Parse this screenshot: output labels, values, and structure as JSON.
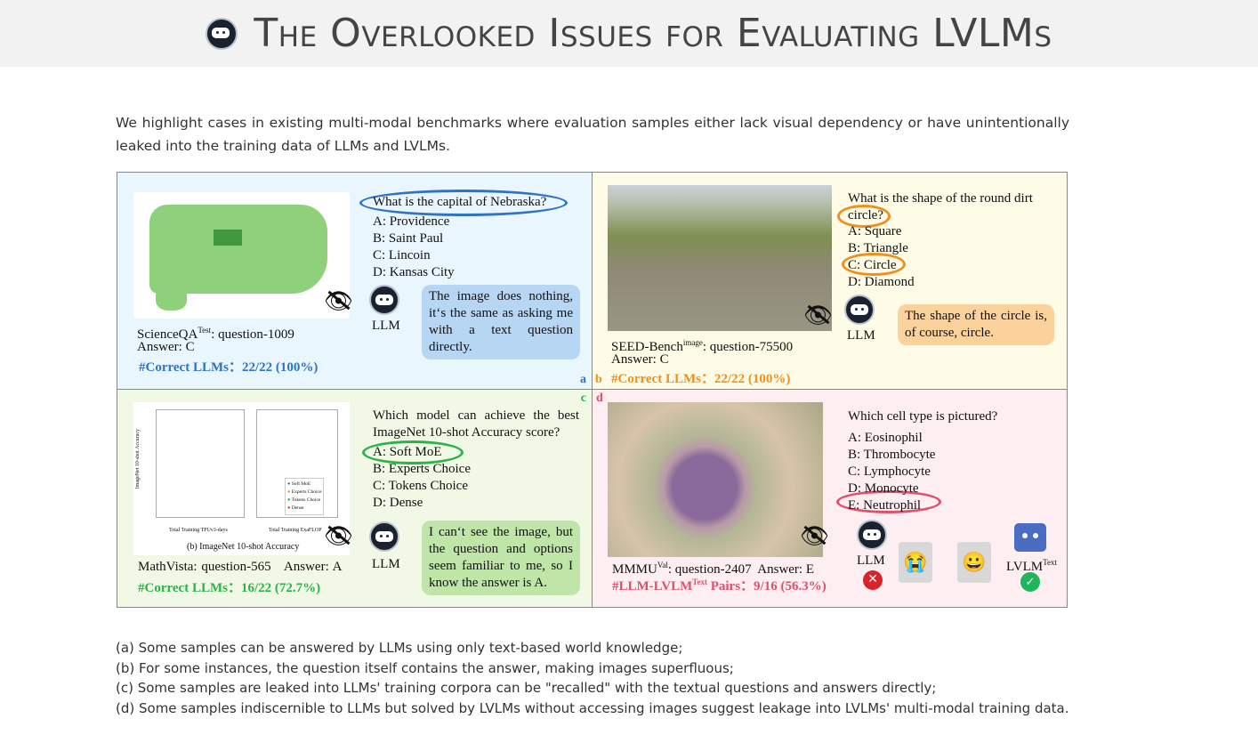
{
  "header": {
    "title": "The Overlooked Issues for Evaluating LVLMs",
    "icon": "robot-icon"
  },
  "intro": "We highlight cases in existing multi-modal benchmarks where evaluation samples either lack visual dependency or have unintentionally leaked into the training data of LLMs and LVLMs.",
  "panels": {
    "a": {
      "tag": "a",
      "question": "What is the capital of Nebraska?",
      "options": [
        "A: Providence",
        "B: Saint Paul",
        "C: Lincoin",
        "D: Kansas City"
      ],
      "agent": "LLM",
      "bubble": "The image does nothing, it‘s the same as asking me with a text question directly.",
      "source": "ScienceQA",
      "source_sup": "Test",
      "source_rest": ": question-1009",
      "answer": "Answer: C",
      "stat": "#Correct LLMs：22/22 (100%)",
      "color": "#2f73c5"
    },
    "b": {
      "tag": "b",
      "question1": "What is the shape of the round dirt",
      "question2": "circle?",
      "options": [
        "A: Square",
        "B: Triangle",
        "C: Circle",
        "D: Diamond"
      ],
      "agent": "LLM",
      "bubble": "The shape of the circle is, of course, circle.",
      "source": "SEED-Bench",
      "source_sup": "image",
      "source_rest": ": question-75500",
      "answer": "Answer: C",
      "stat": "#Correct LLMs：22/22 (100%)",
      "color": "#f28e1c"
    },
    "c": {
      "tag": "c",
      "question": "Which model can achieve the best ImageNet 10-shot Accuracy score?",
      "options": [
        "A: Soft MoE",
        "B: Experts Choice",
        "C: Tokens Choice",
        "D: Dense"
      ],
      "agent": "LLM",
      "bubble": "I can‘t see the image, but the question and options seem familiar to me, so I know the answer is A.",
      "source": "MathVista: question-565",
      "answer": "Answer: A",
      "stat": "#Correct LLMs：16/22 (72.7%)",
      "color": "#2bb34a",
      "chart_caption": "(b) ImageNet 10-shot Accuracy",
      "chart_xlabel1": "Total Training TPUv3-days",
      "chart_xlabel2": "Total Training ExaFLOP",
      "chart_ylabel": "ImageNet 10-shot Accuracy",
      "legend": [
        "Soft MoE",
        "Experts Choice",
        "Tokens Choice",
        "Dense"
      ]
    },
    "d": {
      "tag": "d",
      "question": "Which cell type is pictured?",
      "options": [
        "A: Eosinophil",
        "B: Thrombocyte",
        "C: Lymphocyte",
        "D: Monocyte",
        "E: Neutrophil"
      ],
      "agent1": "LLM",
      "agent2": "LVLM",
      "agent2_sup": "Text",
      "source": "MMMU",
      "source_sup": "Val",
      "source_rest": ": question-2407  Answer: E",
      "stat": "#LLM-LVLM",
      "stat_sup": "Text",
      "stat_rest": " Pairs：9/16 (56.3%)",
      "color": "#e0506e",
      "emoji1": "😭",
      "emoji2": "😀"
    }
  },
  "captions": [
    "(a) Some samples can be answered by LLMs using only text-based world knowledge;",
    "(b) For some instances, the question itself contains the answer, making images superfluous;",
    "(c) Some samples are leaked into LLMs' training corpora can be \"recalled\" with the textual questions and answers directly;",
    "(d) Some samples indiscernible to LLMs but solved by LVLMs without accessing images suggest leakage into LVLMs' multi-modal training data."
  ]
}
